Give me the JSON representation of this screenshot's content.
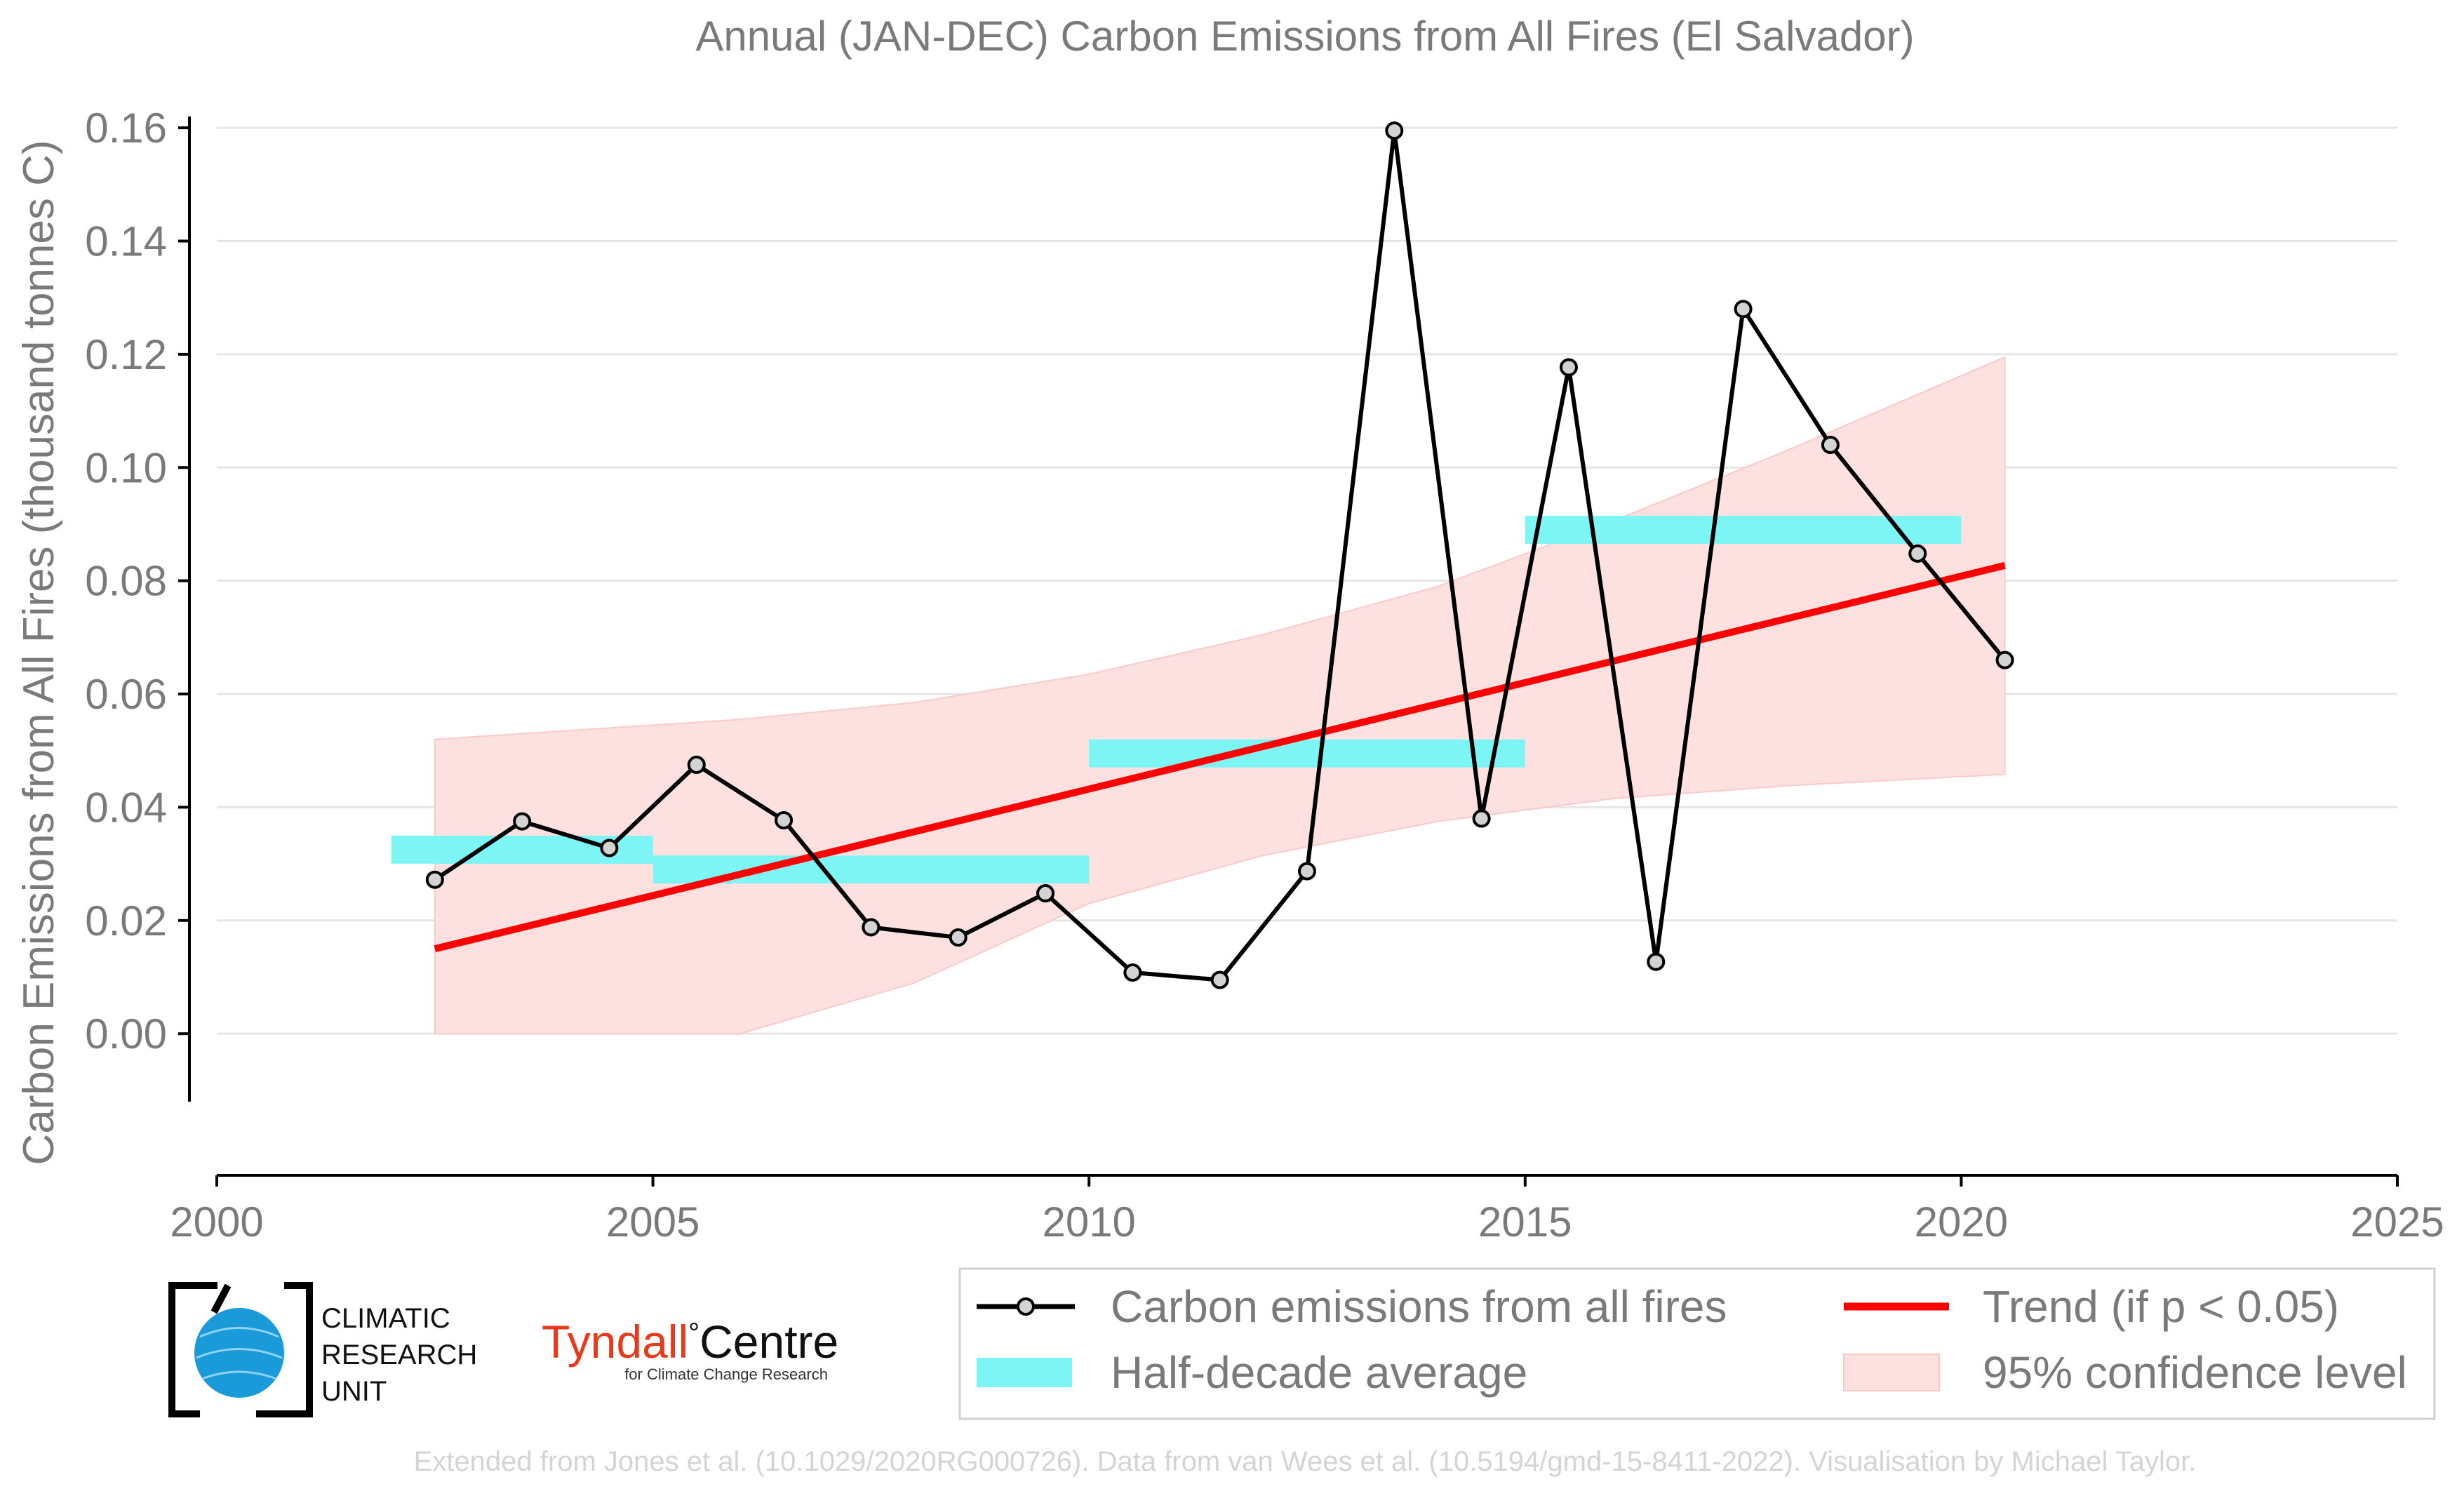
{
  "chart_data": {
    "type": "line",
    "title": "Annual (JAN-DEC) Carbon Emissions from All Fires (El Salvador)",
    "xlabel": "",
    "ylabel": "Carbon Emissions from All Fires (thousand tonnes C)",
    "xlim": [
      2000,
      2025
    ],
    "ylim": [
      -0.012,
      0.162
    ],
    "xticks": [
      "2000",
      "2005",
      "2010",
      "2015",
      "2020",
      "2025"
    ],
    "xtick_values": [
      2000,
      2005,
      2010,
      2015,
      2020,
      2025
    ],
    "yticks": [
      "0.00",
      "0.02",
      "0.04",
      "0.06",
      "0.08",
      "0.10",
      "0.12",
      "0.14",
      "0.16"
    ],
    "ytick_values": [
      0,
      0.02,
      0.04,
      0.06,
      0.08,
      0.1,
      0.12,
      0.14,
      0.16
    ],
    "grid": "horizontal",
    "series": [
      {
        "name": "Carbon emissions from all fires",
        "color": "#000000",
        "x": [
          2002.5,
          2003.5,
          2004.5,
          2005.5,
          2006.5,
          2007.5,
          2008.5,
          2009.5,
          2010.5,
          2011.5,
          2012.5,
          2013.5,
          2014.5,
          2015.5,
          2016.5,
          2017.5,
          2018.5,
          2019.5,
          2020.5
        ],
        "y": [
          0.0272,
          0.0375,
          0.0328,
          0.0475,
          0.0377,
          0.0188,
          0.017,
          0.0248,
          0.0108,
          0.0095,
          0.0287,
          0.1595,
          0.038,
          0.1177,
          0.0127,
          0.128,
          0.104,
          0.0848,
          0.066
        ]
      },
      {
        "name": "Half-decade average",
        "color": "#7ef5f5",
        "segments": [
          {
            "x0": 2002,
            "x1": 2005,
            "y": 0.0325
          },
          {
            "x0": 2005,
            "x1": 2010,
            "y": 0.029
          },
          {
            "x0": 2010,
            "x1": 2015,
            "y": 0.0495
          },
          {
            "x0": 2015,
            "x1": 2020,
            "y": 0.089
          }
        ]
      },
      {
        "name": "Trend (if p < 0.05)",
        "color": "#ff0000",
        "x": [
          2002.5,
          2020.5
        ],
        "y": [
          0.015,
          0.0827
        ]
      },
      {
        "name": "95% confidence level",
        "color": "#fde0e0",
        "x": [
          2002.5,
          2004,
          2006,
          2008,
          2010,
          2012,
          2014,
          2016,
          2018,
          2020.5
        ],
        "upper": [
          0.052,
          0.0535,
          0.0555,
          0.0585,
          0.0635,
          0.0705,
          0.079,
          0.0905,
          0.103,
          0.1195
        ],
        "lower": [
          0.0,
          0.0,
          0.0,
          0.009,
          0.023,
          0.0315,
          0.0375,
          0.0415,
          0.0438,
          0.0458
        ]
      }
    ]
  },
  "legend": {
    "items": [
      {
        "label": "Carbon emissions from all fires"
      },
      {
        "label": "Trend (if p < 0.05)"
      },
      {
        "label": "Half-decade average"
      },
      {
        "label": "95% confidence level"
      }
    ]
  },
  "logos": {
    "cru": {
      "line1": "CLIMATIC",
      "line2": "RESEARCH",
      "line3": "UNIT"
    },
    "tyndall": {
      "main": "Tyndall",
      "degree": "°",
      "centre": "Centre",
      "sub": "for Climate Change Research",
      "main_color": "#e8391d",
      "centre_color": "#111111"
    }
  },
  "credit": "Extended from Jones et al. (10.1029/2020RG000726). Data from van Wees et al. (10.5194/gmd-15-8411-2022). Visualisation by Michael Taylor."
}
